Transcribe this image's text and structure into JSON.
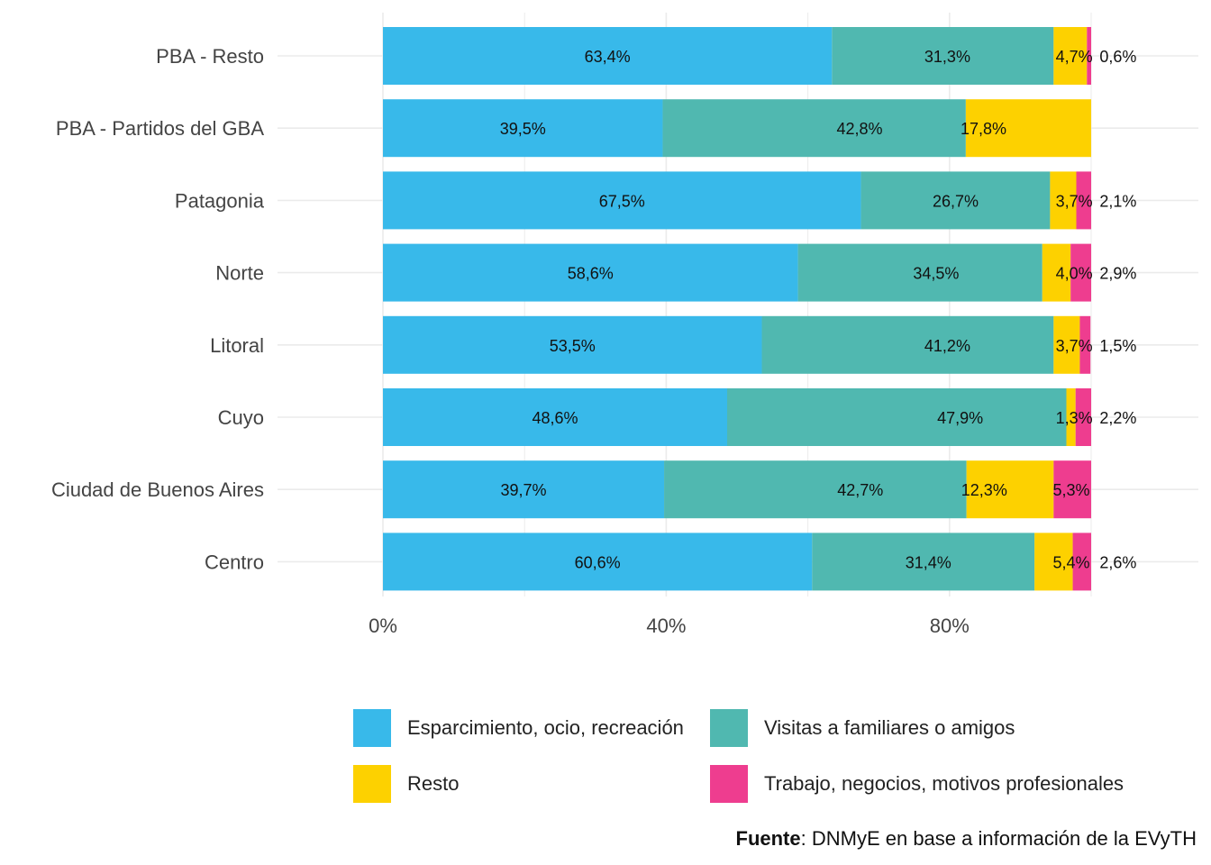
{
  "chart_data": {
    "type": "bar",
    "orientation": "horizontal",
    "stacked": true,
    "categories": [
      "PBA - Resto",
      "PBA - Partidos del GBA",
      "Patagonia",
      "Norte",
      "Litoral",
      "Cuyo",
      "Ciudad de Buenos Aires",
      "Centro"
    ],
    "series": [
      {
        "name": "Esparcimiento, ocio, recreación",
        "color": "#38B9EA",
        "values": [
          63.4,
          39.5,
          67.5,
          58.6,
          53.5,
          48.6,
          39.7,
          60.6
        ],
        "labels": [
          "63,4%",
          "39,5%",
          "67,5%",
          "58,6%",
          "53,5%",
          "48,6%",
          "39,7%",
          "60,6%"
        ]
      },
      {
        "name": "Visitas a familiares o amigos",
        "color": "#50B8B0",
        "values": [
          31.3,
          42.8,
          26.7,
          34.5,
          41.2,
          47.9,
          42.7,
          31.4
        ],
        "labels": [
          "31,3%",
          "42,8%",
          "26,7%",
          "34,5%",
          "41,2%",
          "47,9%",
          "42,7%",
          "31,4%"
        ]
      },
      {
        "name": "Resto",
        "color": "#FDD100",
        "values": [
          4.7,
          17.8,
          3.7,
          4.0,
          3.7,
          1.3,
          12.3,
          5.4
        ],
        "labels": [
          "4,7%",
          "17,8%",
          "3,7%",
          "4,0%",
          "3,7%",
          "1,3%",
          "12,3%",
          "5,4%"
        ]
      },
      {
        "name": "Trabajo, negocios, motivos profesionales",
        "color": "#EE3D8F",
        "values": [
          0.6,
          0.0,
          2.1,
          2.9,
          1.5,
          2.2,
          5.3,
          2.6
        ],
        "labels": [
          "0,6%",
          "",
          "2,1%",
          "2,9%",
          "1,5%",
          "2,2%",
          "5,3%",
          "2,6%"
        ]
      }
    ],
    "xlim": [
      0,
      100
    ],
    "xticks": [
      0,
      40,
      80
    ],
    "xtick_labels": [
      "0%",
      "40%",
      "80%"
    ],
    "grid": true,
    "legend_position": "bottom"
  },
  "source": {
    "bold": "Fuente",
    "text": ": DNMyE en base a información de la EVyTH"
  }
}
